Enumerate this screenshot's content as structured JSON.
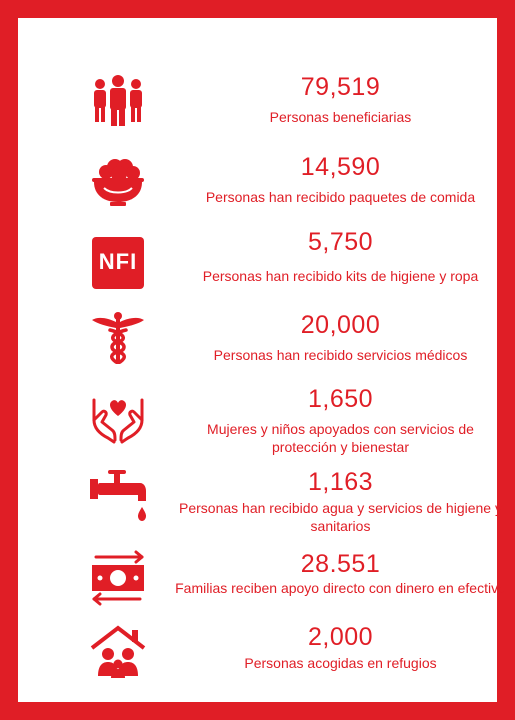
{
  "colors": {
    "accent": "#e01e26",
    "background": "#ffffff"
  },
  "stats": [
    {
      "icon": "people-group-icon",
      "value": "79,519",
      "label": "Personas beneficiarias"
    },
    {
      "icon": "food-bowl-icon",
      "value": "14,590",
      "label": "Personas han recibido paquetes de comida"
    },
    {
      "icon": "nfi-badge-icon",
      "badge_text": "NFI",
      "value": "5,750",
      "label": "Personas han recibido kits de higiene y ropa"
    },
    {
      "icon": "caduceus-icon",
      "value": "20,000",
      "label": "Personas han recibido servicios médicos"
    },
    {
      "icon": "hands-heart-icon",
      "value": "1,650",
      "label": "Mujeres y niños apoyados con servicios de protección y bienestar"
    },
    {
      "icon": "water-tap-icon",
      "value": "1,163",
      "label": "Personas han recibido agua y servicios de higiene y sanitarios"
    },
    {
      "icon": "cash-transfer-icon",
      "value": "28.551",
      "label": "Familias reciben apoyo directo con dinero en efectivo"
    },
    {
      "icon": "house-shelter-icon",
      "value": "2,000",
      "label": "Personas acogidas en refugios"
    }
  ]
}
